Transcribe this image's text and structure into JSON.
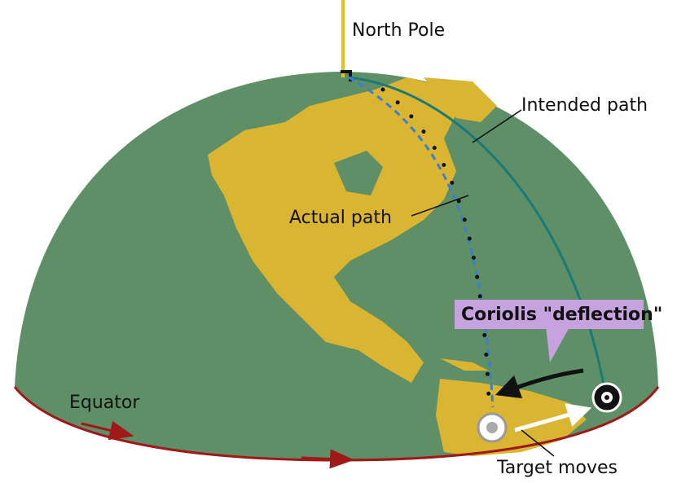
{
  "labels": {
    "north_pole": "North Pole",
    "intended_path": "Intended path",
    "actual_path": "Actual path",
    "coriolis": "Coriolis \"deflection\"",
    "equator": "Equator",
    "target_moves": "Target moves"
  }
}
